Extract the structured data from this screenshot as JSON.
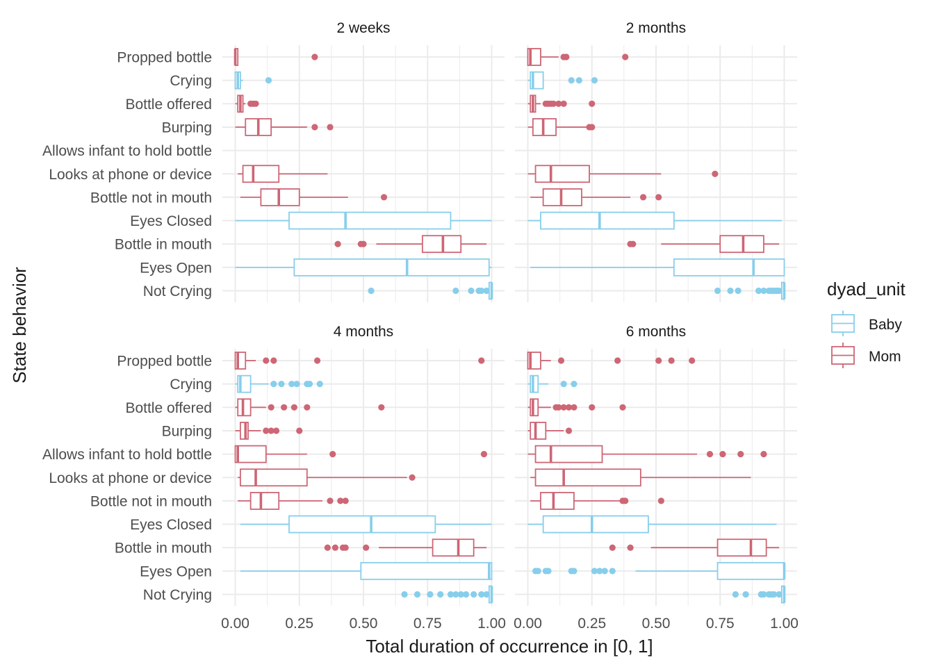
{
  "colors": {
    "Baby": "#87CEEB",
    "Mom": "#CD6675",
    "grid": "#EBEBEB",
    "text": "#4D4D4D",
    "title": "#1A1A1A"
  },
  "chart_data": {
    "type": "boxplot",
    "orientation": "horizontal",
    "facet_labels": [
      "2 weeks",
      "2 months",
      "4 months",
      "6 months"
    ],
    "x_axis_title": "Total duration of occurrence in [0, 1]",
    "y_axis_title": "State behavior",
    "x_ticks": [
      "0.00",
      "0.25",
      "0.50",
      "0.75",
      "1.00"
    ],
    "xlim": [
      0,
      1
    ],
    "categories": [
      "Propped bottle",
      "Crying",
      "Bottle offered",
      "Burping",
      "Allows infant to hold bottle",
      "Looks at phone or device",
      "Bottle not in mouth",
      "Eyes Closed",
      "Bottle in mouth",
      "Eyes Open",
      "Not Crying"
    ],
    "legend": {
      "title": "dyad_unit",
      "entries": [
        "Baby",
        "Mom"
      ],
      "position": "right"
    },
    "grid": true,
    "panels": [
      {
        "label": "2 weeks",
        "boxes": [
          {
            "category": "Propped bottle",
            "group": "Mom",
            "min": 0.0,
            "q1": 0.0,
            "median": 0.0,
            "q3": 0.01,
            "max": 0.01,
            "outliers": [
              0.31
            ]
          },
          {
            "category": "Crying",
            "group": "Baby",
            "min": 0.0,
            "q1": 0.0,
            "median": 0.01,
            "q3": 0.02,
            "max": 0.03,
            "outliers": [
              0.13
            ]
          },
          {
            "category": "Bottle offered",
            "group": "Mom",
            "min": 0.0,
            "q1": 0.01,
            "median": 0.02,
            "q3": 0.03,
            "max": 0.04,
            "outliers": [
              0.06,
              0.07,
              0.08
            ]
          },
          {
            "category": "Burping",
            "group": "Mom",
            "min": 0.0,
            "q1": 0.04,
            "median": 0.09,
            "q3": 0.14,
            "max": 0.28,
            "outliers": [
              0.31,
              0.37
            ]
          },
          {
            "category": "Looks at phone or device",
            "group": "Mom",
            "min": 0.01,
            "q1": 0.03,
            "median": 0.07,
            "q3": 0.17,
            "max": 0.36,
            "outliers": []
          },
          {
            "category": "Bottle not in mouth",
            "group": "Mom",
            "min": 0.02,
            "q1": 0.1,
            "median": 0.17,
            "q3": 0.25,
            "max": 0.44,
            "outliers": [
              0.58
            ]
          },
          {
            "category": "Eyes Closed",
            "group": "Baby",
            "min": 0.0,
            "q1": 0.21,
            "median": 0.43,
            "q3": 0.84,
            "max": 1.0,
            "outliers": []
          },
          {
            "category": "Bottle in mouth",
            "group": "Mom",
            "min": 0.55,
            "q1": 0.73,
            "median": 0.81,
            "q3": 0.88,
            "max": 0.98,
            "outliers": [
              0.4,
              0.49,
              0.5
            ]
          },
          {
            "category": "Eyes Open",
            "group": "Baby",
            "min": 0.0,
            "q1": 0.23,
            "median": 0.67,
            "q3": 0.99,
            "max": 1.0,
            "outliers": []
          },
          {
            "category": "Not Crying",
            "group": "Baby",
            "min": 0.99,
            "q1": 0.99,
            "median": 1.0,
            "q3": 1.0,
            "max": 1.0,
            "outliers": [
              0.53,
              0.86,
              0.92,
              0.95,
              0.96,
              0.98
            ]
          }
        ]
      },
      {
        "label": "2 months",
        "boxes": [
          {
            "category": "Propped bottle",
            "group": "Mom",
            "min": 0.0,
            "q1": 0.0,
            "median": 0.01,
            "q3": 0.05,
            "max": 0.12,
            "outliers": [
              0.14,
              0.15,
              0.38
            ]
          },
          {
            "category": "Crying",
            "group": "Baby",
            "min": 0.0,
            "q1": 0.01,
            "median": 0.02,
            "q3": 0.06,
            "max": 0.06,
            "outliers": [
              0.17,
              0.2,
              0.26
            ]
          },
          {
            "category": "Bottle offered",
            "group": "Mom",
            "min": 0.0,
            "q1": 0.01,
            "median": 0.02,
            "q3": 0.03,
            "max": 0.05,
            "outliers": [
              0.07,
              0.08,
              0.09,
              0.1,
              0.12,
              0.14,
              0.25
            ]
          },
          {
            "category": "Burping",
            "group": "Mom",
            "min": 0.0,
            "q1": 0.02,
            "median": 0.06,
            "q3": 0.11,
            "max": 0.24,
            "outliers": [
              0.24,
              0.25
            ]
          },
          {
            "category": "Looks at phone or device",
            "group": "Mom",
            "min": 0.0,
            "q1": 0.03,
            "median": 0.09,
            "q3": 0.24,
            "max": 0.52,
            "outliers": [
              0.73
            ]
          },
          {
            "category": "Bottle not in mouth",
            "group": "Mom",
            "min": 0.01,
            "q1": 0.06,
            "median": 0.13,
            "q3": 0.21,
            "max": 0.4,
            "outliers": [
              0.45,
              0.51
            ]
          },
          {
            "category": "Eyes Closed",
            "group": "Baby",
            "min": 0.0,
            "q1": 0.05,
            "median": 0.28,
            "q3": 0.57,
            "max": 0.99,
            "outliers": []
          },
          {
            "category": "Bottle in mouth",
            "group": "Mom",
            "min": 0.52,
            "q1": 0.75,
            "median": 0.84,
            "q3": 0.92,
            "max": 0.98,
            "outliers": [
              0.4,
              0.41
            ]
          },
          {
            "category": "Eyes Open",
            "group": "Baby",
            "min": 0.01,
            "q1": 0.57,
            "median": 0.88,
            "q3": 1.0,
            "max": 1.0,
            "outliers": []
          },
          {
            "category": "Not Crying",
            "group": "Baby",
            "min": 0.99,
            "q1": 0.99,
            "median": 1.0,
            "q3": 1.0,
            "max": 1.0,
            "outliers": [
              0.74,
              0.79,
              0.82,
              0.9,
              0.92,
              0.94,
              0.95,
              0.96,
              0.97,
              0.98
            ]
          }
        ]
      },
      {
        "label": "4 months",
        "boxes": [
          {
            "category": "Propped bottle",
            "group": "Mom",
            "min": 0.0,
            "q1": 0.0,
            "median": 0.01,
            "q3": 0.04,
            "max": 0.08,
            "outliers": [
              0.12,
              0.15,
              0.32,
              0.96
            ]
          },
          {
            "category": "Crying",
            "group": "Baby",
            "min": 0.0,
            "q1": 0.01,
            "median": 0.02,
            "q3": 0.06,
            "max": 0.13,
            "outliers": [
              0.15,
              0.18,
              0.22,
              0.24,
              0.28,
              0.29,
              0.33
            ]
          },
          {
            "category": "Bottle offered",
            "group": "Mom",
            "min": 0.0,
            "q1": 0.01,
            "median": 0.03,
            "q3": 0.06,
            "max": 0.12,
            "outliers": [
              0.14,
              0.19,
              0.23,
              0.28,
              0.57
            ]
          },
          {
            "category": "Burping",
            "group": "Mom",
            "min": 0.0,
            "q1": 0.02,
            "median": 0.04,
            "q3": 0.05,
            "max": 0.1,
            "outliers": [
              0.12,
              0.14,
              0.16,
              0.25
            ]
          },
          {
            "category": "Allows infant to hold bottle",
            "group": "Mom",
            "min": 0.0,
            "q1": 0.0,
            "median": 0.01,
            "q3": 0.12,
            "max": 0.28,
            "outliers": [
              0.38,
              0.97
            ]
          },
          {
            "category": "Looks at phone or device",
            "group": "Mom",
            "min": 0.01,
            "q1": 0.02,
            "median": 0.08,
            "q3": 0.28,
            "max": 0.67,
            "outliers": [
              0.69
            ]
          },
          {
            "category": "Bottle not in mouth",
            "group": "Mom",
            "min": 0.01,
            "q1": 0.06,
            "median": 0.1,
            "q3": 0.17,
            "max": 0.34,
            "outliers": [
              0.37,
              0.41,
              0.43
            ]
          },
          {
            "category": "Eyes Closed",
            "group": "Baby",
            "min": 0.02,
            "q1": 0.21,
            "median": 0.53,
            "q3": 0.78,
            "max": 1.0,
            "outliers": []
          },
          {
            "category": "Bottle in mouth",
            "group": "Mom",
            "min": 0.56,
            "q1": 0.77,
            "median": 0.87,
            "q3": 0.93,
            "max": 0.98,
            "outliers": [
              0.36,
              0.39,
              0.42,
              0.43,
              0.51
            ]
          },
          {
            "category": "Eyes Open",
            "group": "Baby",
            "min": 0.02,
            "q1": 0.49,
            "median": 0.99,
            "q3": 1.0,
            "max": 1.0,
            "outliers": []
          },
          {
            "category": "Not Crying",
            "group": "Baby",
            "min": 0.99,
            "q1": 0.99,
            "median": 1.0,
            "q3": 1.0,
            "max": 1.0,
            "outliers": [
              0.66,
              0.71,
              0.76,
              0.8,
              0.84,
              0.86,
              0.88,
              0.9,
              0.93,
              0.96,
              0.98
            ]
          }
        ]
      },
      {
        "label": "6 months",
        "boxes": [
          {
            "category": "Propped bottle",
            "group": "Mom",
            "min": 0.0,
            "q1": 0.0,
            "median": 0.01,
            "q3": 0.05,
            "max": 0.09,
            "outliers": [
              0.13,
              0.35,
              0.51,
              0.56,
              0.64
            ]
          },
          {
            "category": "Crying",
            "group": "Baby",
            "min": 0.0,
            "q1": 0.01,
            "median": 0.02,
            "q3": 0.04,
            "max": 0.08,
            "outliers": [
              0.14,
              0.18
            ]
          },
          {
            "category": "Bottle offered",
            "group": "Mom",
            "min": 0.0,
            "q1": 0.01,
            "median": 0.02,
            "q3": 0.04,
            "max": 0.09,
            "outliers": [
              0.11,
              0.12,
              0.14,
              0.16,
              0.18,
              0.25,
              0.37
            ]
          },
          {
            "category": "Burping",
            "group": "Mom",
            "min": 0.0,
            "q1": 0.01,
            "median": 0.03,
            "q3": 0.07,
            "max": 0.14,
            "outliers": [
              0.16
            ]
          },
          {
            "category": "Allows infant to hold bottle",
            "group": "Mom",
            "min": 0.0,
            "q1": 0.03,
            "median": 0.09,
            "q3": 0.29,
            "max": 0.66,
            "outliers": [
              0.71,
              0.76,
              0.83,
              0.92
            ]
          },
          {
            "category": "Looks at phone or device",
            "group": "Mom",
            "min": 0.01,
            "q1": 0.03,
            "median": 0.14,
            "q3": 0.44,
            "max": 0.87,
            "outliers": []
          },
          {
            "category": "Bottle not in mouth",
            "group": "Mom",
            "min": 0.01,
            "q1": 0.05,
            "median": 0.1,
            "q3": 0.18,
            "max": 0.36,
            "outliers": [
              0.37,
              0.38,
              0.52
            ]
          },
          {
            "category": "Eyes Closed",
            "group": "Baby",
            "min": 0.0,
            "q1": 0.06,
            "median": 0.25,
            "q3": 0.47,
            "max": 0.97,
            "outliers": []
          },
          {
            "category": "Bottle in mouth",
            "group": "Mom",
            "min": 0.48,
            "q1": 0.74,
            "median": 0.87,
            "q3": 0.93,
            "max": 0.98,
            "outliers": [
              0.33,
              0.4
            ]
          },
          {
            "category": "Eyes Open",
            "group": "Baby",
            "min": 0.42,
            "q1": 0.74,
            "median": 1.0,
            "q3": 1.0,
            "max": 1.0,
            "outliers": [
              0.03,
              0.04,
              0.07,
              0.08,
              0.17,
              0.18,
              0.26,
              0.28,
              0.3,
              0.33
            ]
          },
          {
            "category": "Not Crying",
            "group": "Baby",
            "min": 0.99,
            "q1": 0.99,
            "median": 1.0,
            "q3": 1.0,
            "max": 1.0,
            "outliers": [
              0.81,
              0.85,
              0.91,
              0.92,
              0.94,
              0.95,
              0.96,
              0.98
            ]
          }
        ]
      }
    ]
  }
}
